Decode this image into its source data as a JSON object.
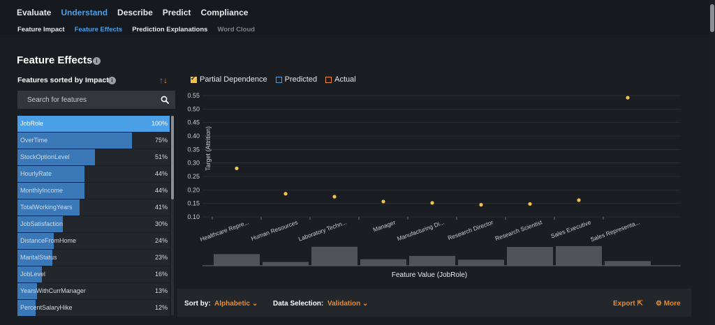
{
  "nav": {
    "tabs": [
      {
        "label": "Evaluate"
      },
      {
        "label": "Understand"
      },
      {
        "label": "Describe"
      },
      {
        "label": "Predict"
      },
      {
        "label": "Compliance"
      }
    ],
    "subtabs": [
      {
        "label": "Feature Impact"
      },
      {
        "label": "Feature Effects"
      },
      {
        "label": "Prediction Explanations"
      },
      {
        "label": "Word Cloud"
      }
    ]
  },
  "page": {
    "title": "Feature Effects",
    "features_heading": "Features sorted by Impact"
  },
  "search": {
    "placeholder": "Search for features"
  },
  "features": [
    {
      "name": "JobRole",
      "pct": "100%",
      "impact": 1.0
    },
    {
      "name": "OverTime",
      "pct": "75%",
      "impact": 0.75
    },
    {
      "name": "StockOptionLevel",
      "pct": "51%",
      "impact": 0.51
    },
    {
      "name": "HourlyRate",
      "pct": "44%",
      "impact": 0.44
    },
    {
      "name": "MonthlyIncome",
      "pct": "44%",
      "impact": 0.44
    },
    {
      "name": "TotalWorkingYears",
      "pct": "41%",
      "impact": 0.41
    },
    {
      "name": "JobSatisfaction",
      "pct": "30%",
      "impact": 0.3
    },
    {
      "name": "DistanceFromHome",
      "pct": "24%",
      "impact": 0.24
    },
    {
      "name": "MaritalStatus",
      "pct": "23%",
      "impact": 0.23
    },
    {
      "name": "JobLevel",
      "pct": "16%",
      "impact": 0.16
    },
    {
      "name": "YearsWithCurrManager",
      "pct": "13%",
      "impact": 0.13
    },
    {
      "name": "PercentSalaryHike",
      "pct": "12%",
      "impact": 0.12
    }
  ],
  "legend": {
    "partial_dependence": "Partial Dependence",
    "predicted": "Predicted",
    "actual": "Actual"
  },
  "chart_data": {
    "type": "scatter",
    "ylabel": "Target (Attrition)",
    "xlabel": "Feature Value (JobRole)",
    "ylim": [
      0.1,
      0.55
    ],
    "yticks": [
      "0.10",
      "0.15",
      "0.20",
      "0.25",
      "0.30",
      "0.35",
      "0.40",
      "0.45",
      "0.50",
      "0.55"
    ],
    "grid": true,
    "categories": [
      "Healthcare Repre...",
      "Human Resources",
      "Laboratory Techn...",
      "Manager",
      "Manufacturing Di...",
      "Research Director",
      "Research Scientist",
      "Sales Executive",
      "Sales Representa..."
    ],
    "partial_dependence": [
      0.28,
      0.186,
      0.175,
      0.157,
      0.152,
      0.145,
      0.148,
      0.162,
      0.542
    ],
    "histogram_relative": [
      0.52,
      0.17,
      0.85,
      0.29,
      0.44,
      0.27,
      0.84,
      0.88,
      0.21
    ],
    "colors": {
      "point": "#f2c04c",
      "histogram": "#505459",
      "grid": "#2a2e33"
    }
  },
  "bottom": {
    "sort_by_label": "Sort by:",
    "sort_by_value": "Alphabetic",
    "data_selection_label": "Data Selection:",
    "data_selection_value": "Validation",
    "export_label": "Export",
    "more_label": "More"
  }
}
